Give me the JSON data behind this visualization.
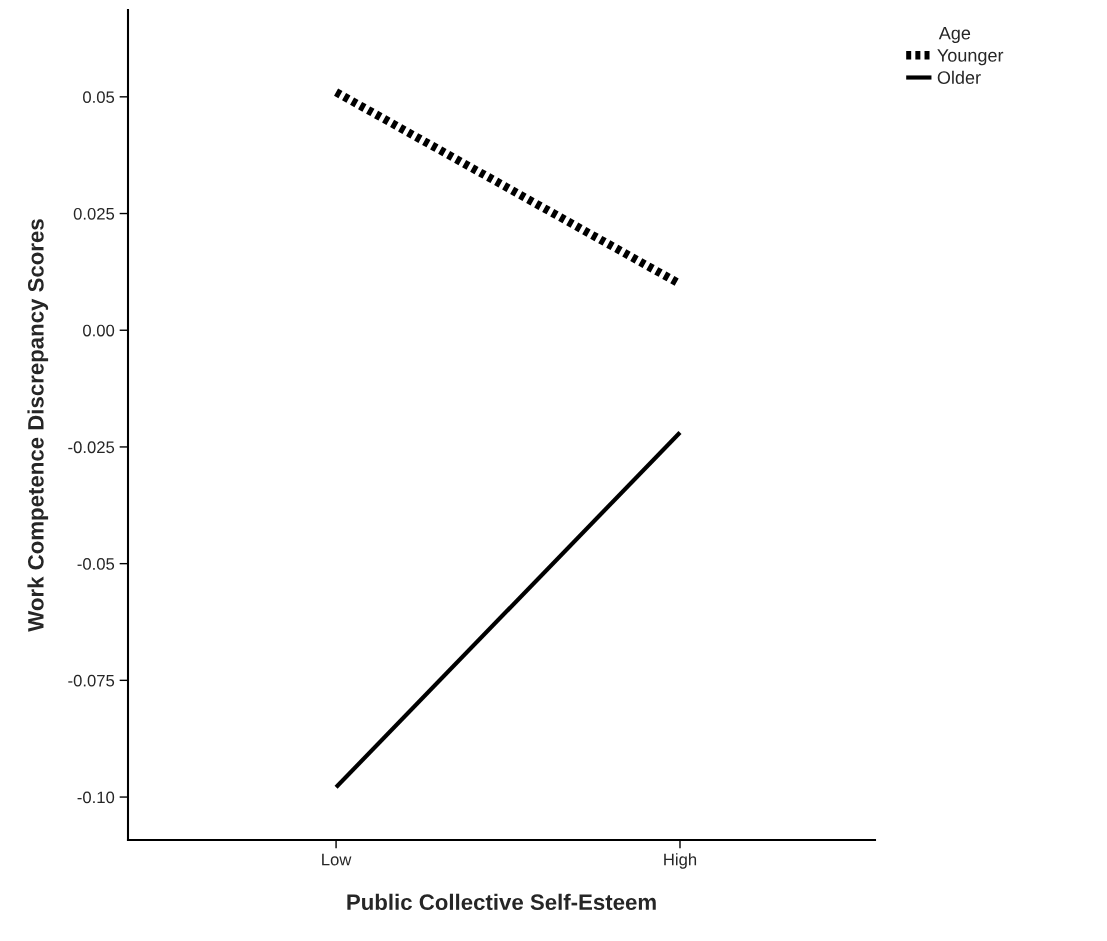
{
  "chart_data": {
    "type": "line",
    "xlabel": "Public Collective Self-Esteem",
    "ylabel": "Work Competence Discrepancy Scores",
    "legend_title": "Age",
    "legend": "top right",
    "categories": [
      "Low",
      "High"
    ],
    "series": [
      {
        "name": "Younger",
        "color": "#000000",
        "line_style": "dotted",
        "values": [
          0.051,
          0.0099
        ]
      },
      {
        "name": "Older",
        "color": "#000000",
        "line_style": "solid",
        "values": [
          -0.0979,
          -0.0219
        ]
      }
    ],
    "ylim": [
      -0.1092,
      0.0686
    ],
    "yticks": [
      {
        "value": -0.1,
        "label": "-0.10"
      },
      {
        "value": -0.075,
        "label": "-0.075"
      },
      {
        "value": -0.05,
        "label": "-0.05"
      },
      {
        "value": -0.025,
        "label": "-0.025"
      },
      {
        "value": 0,
        "label": "0.00"
      },
      {
        "value": 0.025,
        "label": "0.025"
      },
      {
        "value": 0.05,
        "label": "0.05"
      }
    ],
    "grid": false
  }
}
